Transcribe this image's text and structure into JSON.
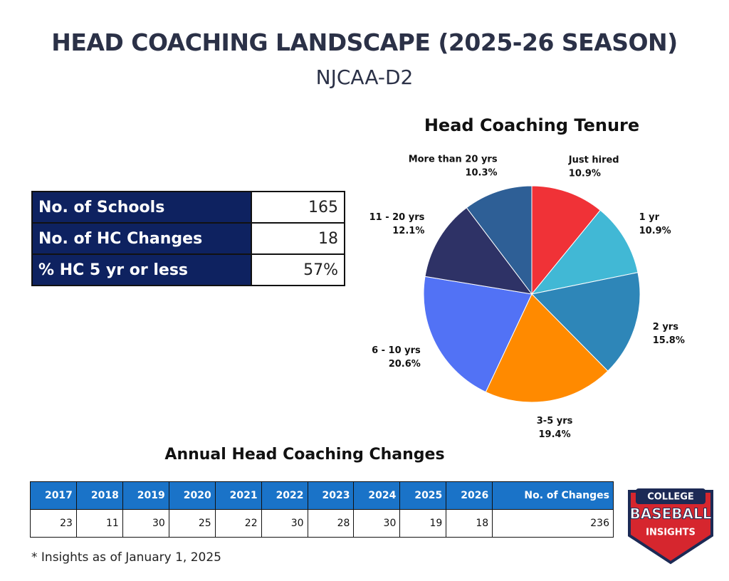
{
  "header": {
    "title": "HEAD COACHING LANDSCAPE (2025-26 SEASON)",
    "subtitle": "NJCAA-D2"
  },
  "summary_table": {
    "rows": [
      [
        "No. of Schools",
        "165"
      ],
      [
        "No. of HC Changes",
        "18"
      ],
      [
        "% HC 5 yr or less",
        "57%"
      ]
    ]
  },
  "chart_data": {
    "type": "pie",
    "title": "Head Coaching Tenure",
    "categories": [
      "Just hired",
      "1 yr",
      "2 yrs",
      "3-5 yrs",
      "6 - 10 yrs",
      "11 - 20 yrs",
      "More than 20 yrs"
    ],
    "values": [
      10.9,
      10.9,
      15.8,
      19.4,
      20.6,
      12.1,
      10.3
    ],
    "value_labels": [
      "10.9%",
      "10.9%",
      "15.8%",
      "19.4%",
      "20.6%",
      "12.1%",
      "10.3%"
    ],
    "colors": [
      "#f03237",
      "#41b8d5",
      "#2e86b8",
      "#ff8a00",
      "#5272f5",
      "#2e3266",
      "#2e5f96"
    ]
  },
  "annual_table": {
    "title": "Annual Head Coaching Changes",
    "header": [
      "2017",
      "2018",
      "2019",
      "2020",
      "2021",
      "2022",
      "2023",
      "2024",
      "2025",
      "2026",
      "No. of Changes"
    ],
    "row": [
      "23",
      "11",
      "30",
      "25",
      "22",
      "30",
      "28",
      "30",
      "19",
      "18",
      "236"
    ]
  },
  "footnote": "* Insights as of January 1, 2025",
  "logo": {
    "top": "COLLEGE",
    "middle": "BASEBALL",
    "bottom": "INSIGHTS"
  }
}
